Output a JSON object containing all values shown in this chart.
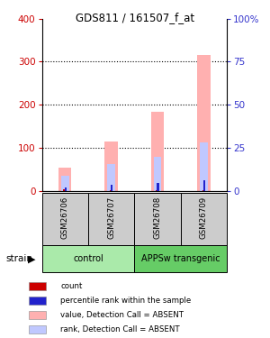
{
  "title": "GDS811 / 161507_f_at",
  "samples": [
    "GSM26706",
    "GSM26707",
    "GSM26708",
    "GSM26709"
  ],
  "group_labels": [
    "control",
    "APPSw transgenic"
  ],
  "bar_colors_absent_value": "#ffb0b0",
  "bar_colors_absent_rank": "#c0c8ff",
  "bar_colors_count": "#cc0000",
  "bar_colors_percentile": "#2222cc",
  "absent_value": [
    55,
    115,
    183,
    315
  ],
  "absent_rank": [
    35,
    62,
    80,
    112
  ],
  "count_value": [
    3,
    2,
    2,
    2
  ],
  "percentile_value": [
    8,
    14,
    18,
    25
  ],
  "ylim_left": [
    0,
    400
  ],
  "ylim_right": [
    0,
    100
  ],
  "yticks_left": [
    0,
    100,
    200,
    300,
    400
  ],
  "yticks_right": [
    0,
    25,
    50,
    75,
    100
  ],
  "ylabel_left_color": "#cc0000",
  "ylabel_right_color": "#3333cc",
  "bg_label": "#cccccc",
  "group_color_1": "#aaeaaa",
  "group_color_2": "#66cc66",
  "strain_label": "strain",
  "legend_items": [
    [
      "#cc0000",
      "count"
    ],
    [
      "#2222cc",
      "percentile rank within the sample"
    ],
    [
      "#ffb0b0",
      "value, Detection Call = ABSENT"
    ],
    [
      "#c0c8ff",
      "rank, Detection Call = ABSENT"
    ]
  ]
}
